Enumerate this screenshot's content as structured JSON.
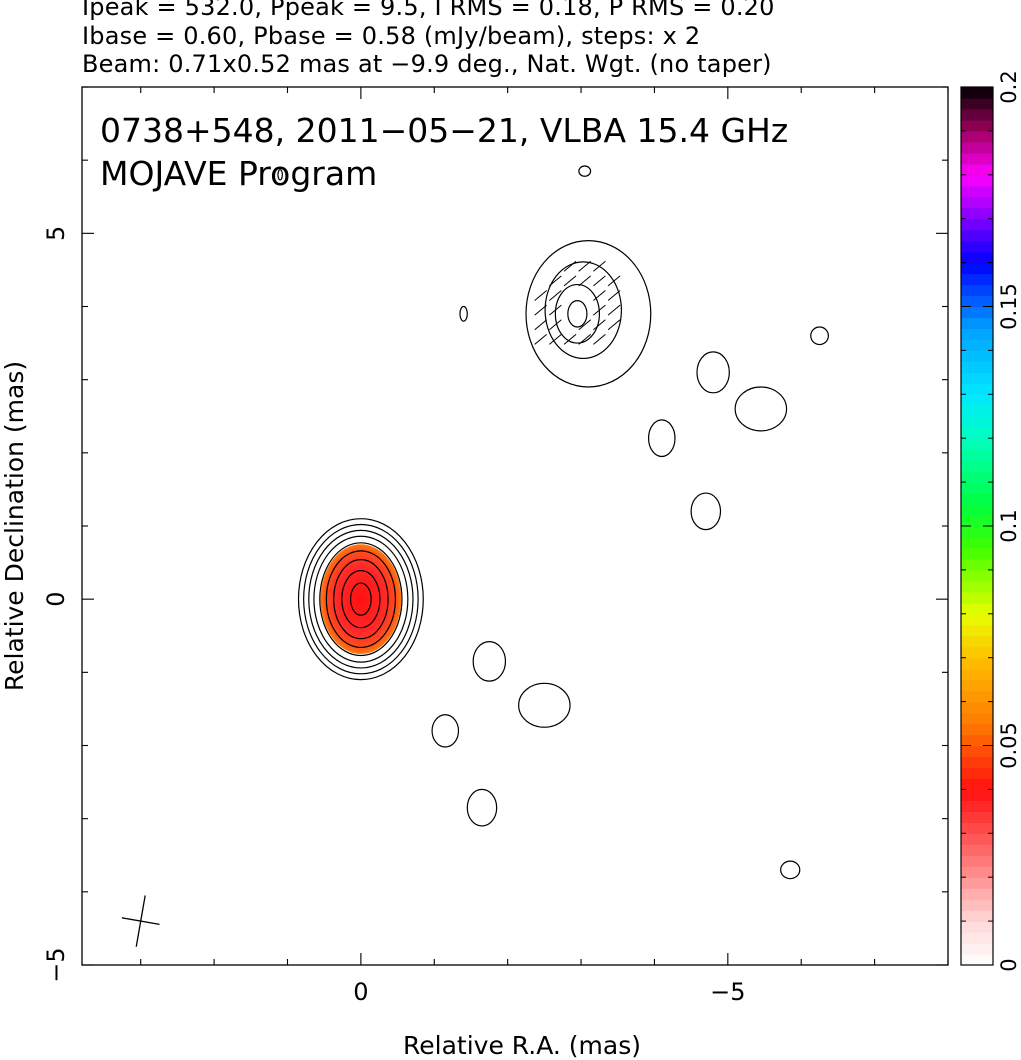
{
  "header": {
    "line1": "Ipeak = 532.0, Ppeak = 9.5, I RMS = 0.18, P RMS = 0.20",
    "line2": "Ibase = 0.60, Pbase = 0.58 (mJy/beam), steps: x 2",
    "line3": "Beam: 0.71x0.52 mas at −9.9 deg., Nat. Wgt. (no taper)"
  },
  "chart_data": {
    "type": "heatmap",
    "annotation_line1": "0738+548, 2011−05−21, VLBA 15.4 GHz",
    "annotation_line2": "MOJAVE Program",
    "xlabel": "Relative R.A. (mas)",
    "ylabel": "Relative Declination (mas)",
    "xlim": [
      3.8,
      -8.0
    ],
    "ylim": [
      -5.0,
      7.0
    ],
    "x_ticks": [
      0,
      -5
    ],
    "x_tick_labels": [
      "0",
      "−5"
    ],
    "y_ticks": [
      -5,
      0,
      5
    ],
    "y_tick_labels": [
      "−5",
      "0",
      "5"
    ],
    "colorbar": {
      "range": [
        0,
        0.2
      ],
      "ticks": [
        0,
        0.05,
        0.1,
        0.15,
        0.2
      ],
      "tick_labels": [
        "0",
        "0.05",
        "0.1",
        "0.15",
        "0.2"
      ]
    },
    "beam": {
      "major_mas": 0.71,
      "minor_mas": 0.52,
      "pa_deg": -9.9,
      "center": [
        3.0,
        -4.4
      ]
    },
    "core": {
      "center": [
        0.0,
        0.0
      ],
      "contours": [
        {
          "rx": 0.85,
          "ry": 1.1
        },
        {
          "rx": 0.78,
          "ry": 1.02
        },
        {
          "rx": 0.71,
          "ry": 0.94
        },
        {
          "rx": 0.64,
          "ry": 0.86
        },
        {
          "rx": 0.56,
          "ry": 0.77
        },
        {
          "rx": 0.47,
          "ry": 0.66
        },
        {
          "rx": 0.37,
          "ry": 0.54
        },
        {
          "rx": 0.26,
          "ry": 0.39
        },
        {
          "rx": 0.14,
          "ry": 0.22
        }
      ],
      "pol_region": {
        "rx": 0.55,
        "ry": 0.75,
        "value": 0.025
      }
    },
    "jet_component": {
      "center": [
        -2.95,
        3.9
      ],
      "contours": [
        {
          "rx": 0.85,
          "ry": 1.0,
          "dx": -0.15,
          "dy": 0.0
        },
        {
          "rx": 0.52,
          "ry": 0.66,
          "dx": -0.08,
          "dy": 0.05
        },
        {
          "rx": 0.3,
          "ry": 0.4,
          "dx": 0.0,
          "dy": 0.0
        },
        {
          "rx": 0.13,
          "ry": 0.18,
          "dx": 0.0,
          "dy": 0.0
        }
      ],
      "evpa_ticks": [
        [
          -2.45,
          3.55
        ],
        [
          -2.65,
          3.55
        ],
        [
          -2.85,
          3.55
        ],
        [
          -3.05,
          3.55
        ],
        [
          -3.25,
          3.55
        ],
        [
          -2.45,
          3.75
        ],
        [
          -2.65,
          3.75
        ],
        [
          -3.05,
          3.75
        ],
        [
          -3.25,
          3.75
        ],
        [
          -3.45,
          3.75
        ],
        [
          -2.45,
          3.95
        ],
        [
          -2.65,
          3.95
        ],
        [
          -3.25,
          3.95
        ],
        [
          -3.45,
          3.95
        ],
        [
          -2.45,
          4.15
        ],
        [
          -2.65,
          4.15
        ],
        [
          -3.25,
          4.15
        ],
        [
          -3.45,
          4.15
        ],
        [
          -2.65,
          4.35
        ],
        [
          -2.85,
          4.35
        ],
        [
          -3.05,
          4.35
        ],
        [
          -3.25,
          4.35
        ],
        [
          -3.45,
          4.35
        ],
        [
          -2.85,
          4.55
        ],
        [
          -3.05,
          4.55
        ],
        [
          -3.25,
          4.55
        ]
      ]
    },
    "noise_contours": [
      {
        "x": -1.4,
        "y": 3.9,
        "rx": 0.05,
        "ry": 0.1
      },
      {
        "x": -6.25,
        "y": 3.6,
        "rx": 0.12,
        "ry": 0.12
      },
      {
        "x": -4.8,
        "y": 3.1,
        "rx": 0.22,
        "ry": 0.28
      },
      {
        "x": -5.45,
        "y": 2.6,
        "rx": 0.35,
        "ry": 0.3
      },
      {
        "x": -4.1,
        "y": 2.2,
        "rx": 0.18,
        "ry": 0.25
      },
      {
        "x": -4.7,
        "y": 1.2,
        "rx": 0.2,
        "ry": 0.25
      },
      {
        "x": -1.75,
        "y": -0.85,
        "rx": 0.22,
        "ry": 0.27
      },
      {
        "x": -2.5,
        "y": -1.45,
        "rx": 0.35,
        "ry": 0.3
      },
      {
        "x": -1.15,
        "y": -1.8,
        "rx": 0.18,
        "ry": 0.22
      },
      {
        "x": -1.65,
        "y": -2.85,
        "rx": 0.2,
        "ry": 0.25
      },
      {
        "x": -5.85,
        "y": -3.7,
        "rx": 0.13,
        "ry": 0.12
      },
      {
        "x": -3.05,
        "y": 5.85,
        "rx": 0.08,
        "ry": 0.07
      },
      {
        "x": 1.1,
        "y": 5.8,
        "rx": 0.03,
        "ry": 0.07
      }
    ]
  }
}
